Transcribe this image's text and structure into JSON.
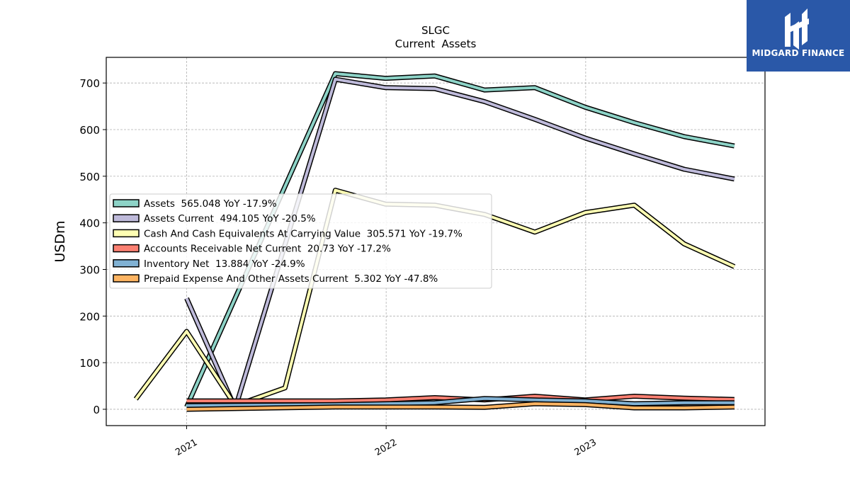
{
  "logo": {
    "text": "MIDGARD FINANCE",
    "background": "#2a58a8"
  },
  "chart_data": {
    "type": "line",
    "title": "SLGC",
    "subtitle": "Current  Assets",
    "xlabel": "",
    "ylabel": "USDm",
    "xlim": [
      "2020-08-07",
      "2023-11-25"
    ],
    "ylim": [
      -35,
      755
    ],
    "x_ticks": [
      {
        "label": "2021",
        "date": "2021-01-01"
      },
      {
        "label": "2022",
        "date": "2022-01-01"
      },
      {
        "label": "2023",
        "date": "2023-01-01"
      }
    ],
    "y_ticks": [
      0,
      100,
      200,
      300,
      400,
      500,
      600,
      700
    ],
    "grid": true,
    "legend_position": "center-left",
    "series": [
      {
        "name": "Assets",
        "legend": "Assets  565.048 YoY -17.9%",
        "color": "#8dd3c7",
        "points": [
          [
            "2021-01-01",
            5
          ],
          [
            "2021-09-30",
            720
          ],
          [
            "2021-12-31",
            710
          ],
          [
            "2022-03-31",
            715
          ],
          [
            "2022-06-30",
            685
          ],
          [
            "2022-09-30",
            690
          ],
          [
            "2022-12-31",
            648
          ],
          [
            "2023-03-31",
            615
          ],
          [
            "2023-06-30",
            585
          ],
          [
            "2023-09-30",
            565
          ]
        ]
      },
      {
        "name": "Assets Current",
        "legend": "Assets Current  494.105 YoY -20.5%",
        "color": "#bebada",
        "points": [
          [
            "2021-01-01",
            238
          ],
          [
            "2021-03-31",
            2
          ],
          [
            "2021-09-30",
            708
          ],
          [
            "2021-12-31",
            690
          ],
          [
            "2022-03-31",
            688
          ],
          [
            "2022-06-30",
            660
          ],
          [
            "2022-09-30",
            622
          ],
          [
            "2022-12-31",
            582
          ],
          [
            "2023-03-31",
            548
          ],
          [
            "2023-06-30",
            515
          ],
          [
            "2023-09-30",
            494
          ]
        ]
      },
      {
        "name": "Cash And Cash Equivalents At Carrying Value",
        "legend": "Cash And Cash Equivalents At Carrying Value  305.571 YoY -19.7%",
        "color": "#ffffb3",
        "points": [
          [
            "2020-09-30",
            22
          ],
          [
            "2021-01-01",
            167
          ],
          [
            "2021-03-31",
            8
          ],
          [
            "2021-06-30",
            46
          ],
          [
            "2021-09-30",
            470
          ],
          [
            "2021-12-31",
            440
          ],
          [
            "2022-03-31",
            438
          ],
          [
            "2022-06-30",
            418
          ],
          [
            "2022-09-30",
            380
          ],
          [
            "2022-12-31",
            422
          ],
          [
            "2023-03-31",
            438
          ],
          [
            "2023-06-30",
            355
          ],
          [
            "2023-09-30",
            306
          ]
        ]
      },
      {
        "name": "Accounts Receivable Net Current",
        "legend": "Accounts Receivable Net Current  20.73 YoY -17.2%",
        "color": "#fb8072",
        "points": [
          [
            "2021-01-01",
            18
          ],
          [
            "2021-09-30",
            18
          ],
          [
            "2021-12-31",
            20
          ],
          [
            "2022-03-31",
            25
          ],
          [
            "2022-06-30",
            20
          ],
          [
            "2022-09-30",
            28
          ],
          [
            "2022-12-31",
            20
          ],
          [
            "2023-03-31",
            28
          ],
          [
            "2023-06-30",
            24
          ],
          [
            "2023-09-30",
            21
          ]
        ]
      },
      {
        "name": "Inventory Net",
        "legend": "Inventory Net  13.884 YoY -24.9%",
        "color": "#80b1d3",
        "points": [
          [
            "2021-01-01",
            8
          ],
          [
            "2021-09-30",
            10
          ],
          [
            "2021-12-31",
            12
          ],
          [
            "2022-03-31",
            14
          ],
          [
            "2022-06-30",
            23
          ],
          [
            "2022-09-30",
            20
          ],
          [
            "2022-12-31",
            18
          ],
          [
            "2023-03-31",
            12
          ],
          [
            "2023-06-30",
            14
          ],
          [
            "2023-09-30",
            14
          ]
        ]
      },
      {
        "name": "Prepaid Expense And Other Assets Current",
        "legend": "Prepaid Expense And Other Assets Current  5.302 YoY -47.8%",
        "color": "#fdb462",
        "points": [
          [
            "2021-01-01",
            0
          ],
          [
            "2021-09-30",
            5
          ],
          [
            "2021-12-31",
            5
          ],
          [
            "2022-03-31",
            5
          ],
          [
            "2022-06-30",
            4
          ],
          [
            "2022-09-30",
            12
          ],
          [
            "2022-12-31",
            10
          ],
          [
            "2023-03-31",
            3
          ],
          [
            "2023-06-30",
            3
          ],
          [
            "2023-09-30",
            5
          ]
        ]
      }
    ]
  }
}
